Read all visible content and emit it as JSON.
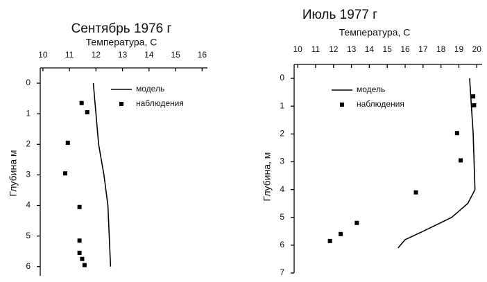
{
  "chart_data": [
    {
      "type": "line",
      "title": "Сентябрь 1976 г",
      "x_label": "Температура, С",
      "y_label": "Глубина м",
      "xlim": [
        9.9,
        16.2
      ],
      "xticks": [
        10,
        11,
        12,
        13,
        14,
        15,
        16
      ],
      "x_axis_position": "top",
      "ylim": [
        -0.5,
        6.3
      ],
      "yticks": [
        0,
        1,
        2,
        3,
        4,
        5,
        6
      ],
      "y_inverted": true,
      "series": [
        {
          "name": "модель",
          "mode": "line",
          "color": "#000000",
          "x": [
            11.9,
            12.0,
            12.1,
            12.3,
            12.45,
            12.5,
            12.55
          ],
          "y": [
            0,
            1,
            2,
            3,
            4,
            5,
            6
          ]
        },
        {
          "name": "наблюдения",
          "mode": "markers",
          "color": "#000000",
          "x": [
            11.46,
            11.67,
            10.94,
            10.84,
            11.38,
            11.38,
            11.38,
            11.48,
            11.57
          ],
          "y": [
            0.65,
            0.95,
            1.95,
            2.95,
            4.05,
            5.15,
            5.55,
            5.75,
            5.95
          ]
        }
      ]
    },
    {
      "type": "line",
      "title": "Июль 1977 г",
      "x_label": "Температура, С",
      "y_label": "Глубина, м",
      "xlim": [
        9.8,
        20.3
      ],
      "xticks": [
        10,
        11,
        12,
        13,
        14,
        15,
        16,
        17,
        18,
        19,
        20
      ],
      "x_axis_position": "top",
      "ylim": [
        -0.5,
        7
      ],
      "yticks": [
        0,
        1,
        2,
        3,
        4,
        5,
        6,
        7
      ],
      "y_inverted": true,
      "series": [
        {
          "name": "модель",
          "mode": "line",
          "color": "#000000",
          "x": [
            19.6,
            19.7,
            19.8,
            19.85,
            19.9,
            19.5,
            18.6,
            17.0,
            16.0,
            15.6
          ],
          "y": [
            0,
            1,
            2,
            3,
            4,
            4.5,
            5,
            5.5,
            5.8,
            6.1
          ]
        },
        {
          "name": "наблюдения",
          "mode": "markers",
          "color": "#000000",
          "x": [
            19.8,
            19.85,
            18.9,
            19.1,
            16.6,
            13.3,
            12.4,
            11.8
          ],
          "y": [
            0.65,
            0.97,
            1.97,
            2.95,
            4.1,
            5.2,
            5.6,
            5.85
          ]
        }
      ]
    }
  ]
}
